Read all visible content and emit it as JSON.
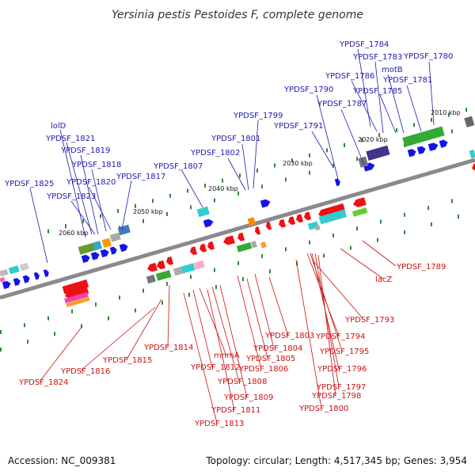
{
  "title": "Yersinia pestis Pestoides F, complete genome",
  "footer": {
    "accession": "Accession: NC_009381",
    "summary": "Topology: circular; Length: 4,517,345 bp; Genes: 3,954"
  },
  "colors": {
    "forward_label": "#1b1bb0",
    "reverse_label": "#cc1111",
    "backbone": "#8a8a8a",
    "tick": "#2e8b2e"
  },
  "kbp_ticks": [
    "2010 kbp",
    "2020 kbp",
    "2030 kbp",
    "2040 kbp",
    "2050 kbp",
    "2060 kbp"
  ],
  "top_labels": [
    "YPDSF_1784",
    "YPDSF_1783",
    "YPDSF_1780",
    "motB",
    "YPDSF_1786",
    "YPDSF_1785",
    "YPDSF_1781",
    "YPDSF_1790",
    "YPDSF_1787",
    "YPDSF_1799",
    "YPDSF_1791",
    "YPDSF_1801",
    "YPDSF_1802",
    "YPDSF_1807",
    "lolD",
    "YPDSF_1821",
    "YPDSF_1819",
    "YPDSF_1818",
    "YPDSF_1817",
    "YPDSF_1825",
    "YPDSF_1820",
    "YPDSF_1823"
  ],
  "bottom_labels": [
    "YPDSF_1789",
    "lacZ",
    "YPDSF_1793",
    "YPDSF_1803",
    "YPDSF_1794",
    "YPDSF_1804",
    "YPDSF_1795",
    "YPDSF_1805",
    "YPDSF_1814",
    "YPDSF_1806",
    "YPDSF_1796",
    "mnmA",
    "YPDSF_1815",
    "YPDSF_1812",
    "YPDSF_1816",
    "YPDSF_1797",
    "YPDSF_1808",
    "YPDSF_1798",
    "YPDSF_1824",
    "YPDSF_1809",
    "YPDSF_1800",
    "YPDSF_1811",
    "YPDSF_1813"
  ]
}
